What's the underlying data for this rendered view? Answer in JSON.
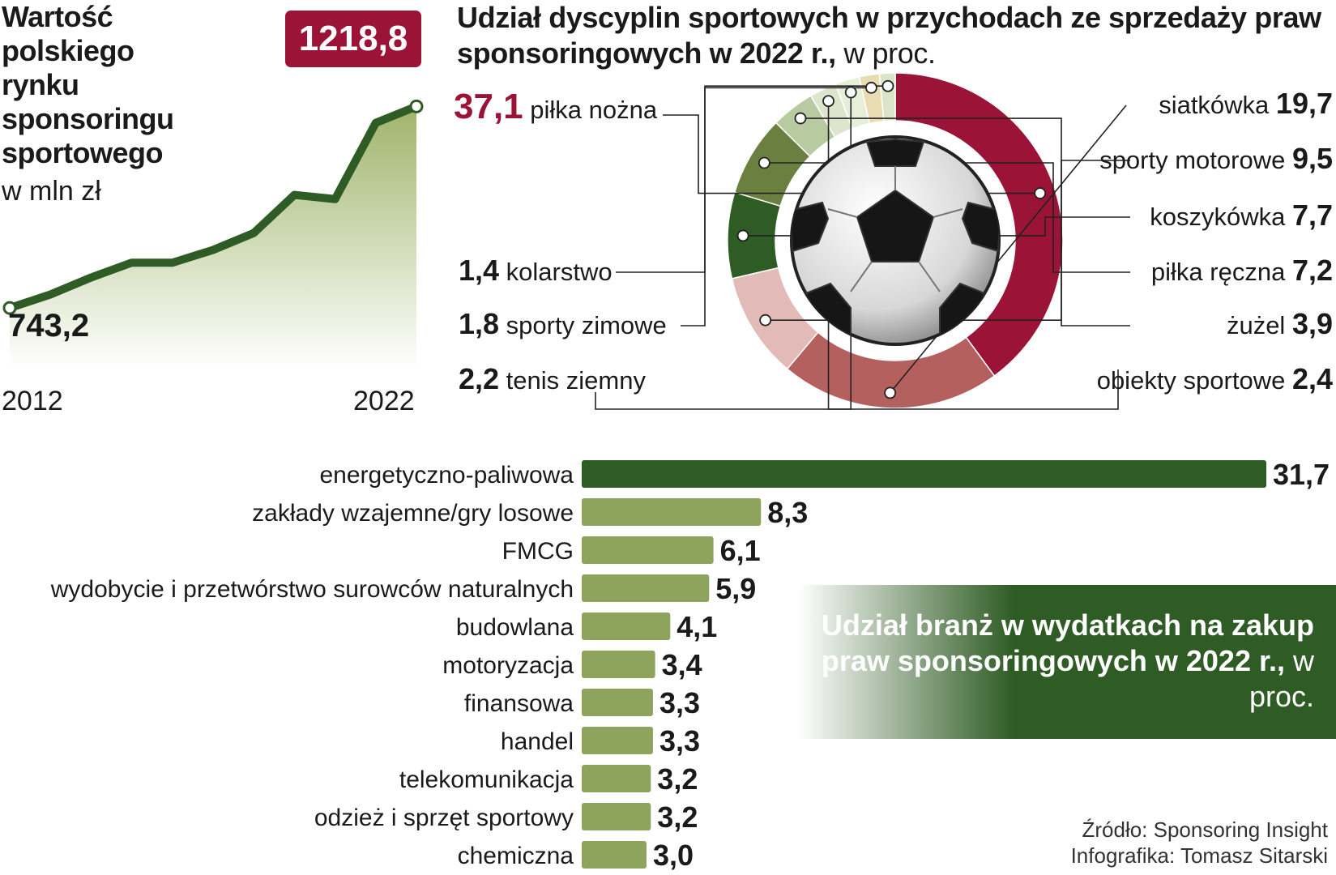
{
  "line_block": {
    "title": "Wartość polskiego rynku sponsoringu sportowego",
    "unit": "w mln zł",
    "start_value_label": "743,2",
    "end_value_label": "1218,8",
    "year_start": "2012",
    "year_end": "2022"
  },
  "donut_block": {
    "title_bold": "Udział dyscyplin sportowych w przychodach ze sprzedaży praw sponsoringowych w 2022 r.,",
    "title_unit": " w proc."
  },
  "bars_block": {
    "title_bold": "Udział branż w wydatkach na zakup praw sponsoringowych w 2022 r.,",
    "title_unit": " w proc."
  },
  "credits": {
    "source": "Źródło: Sponsoring Insight",
    "author": "Infografika: Tomasz Sitarski"
  },
  "colors": {
    "maroon": "#9b1336",
    "dark_green": "#2f5c24",
    "light_green": "#8ea45c",
    "area_green": "#a9bd79"
  },
  "chart_data": [
    {
      "type": "area",
      "x": [
        2012,
        2013,
        2014,
        2015,
        2016,
        2017,
        2018,
        2019,
        2020,
        2021,
        2022
      ],
      "values": [
        743.2,
        775,
        815,
        850,
        850,
        880,
        920,
        1010,
        1000,
        1180,
        1218.8
      ],
      "xlabel": "",
      "ylabel": "",
      "ylim": [
        600,
        1250
      ],
      "grid": false,
      "legend": "none",
      "labeled_points": {
        "first": "743,2",
        "last": "1218,8"
      }
    },
    {
      "type": "pie",
      "subtype": "donut",
      "center_image": "soccer-ball-icon",
      "slices": [
        {
          "label": "piłka nożna",
          "value": 37.1,
          "value_label": "37,1",
          "color": "#9b1336"
        },
        {
          "label": "siatkówka",
          "value": 19.7,
          "value_label": "19,7",
          "color": "#b4605f"
        },
        {
          "label": "sporty motorowe",
          "value": 9.5,
          "value_label": "9,5",
          "color": "#e2bab7"
        },
        {
          "label": "koszykówka",
          "value": 7.7,
          "value_label": "7,7",
          "color": "#2f5c24"
        },
        {
          "label": "piłka ręczna",
          "value": 7.2,
          "value_label": "7,2",
          "color": "#6b8040"
        },
        {
          "label": "żużel",
          "value": 3.9,
          "value_label": "3,9",
          "color": "#b8caa0"
        },
        {
          "label": "obiekty sportowe",
          "value": 2.4,
          "value_label": "2,4",
          "color": "#dde6cc"
        },
        {
          "label": "tenis ziemny",
          "value": 2.2,
          "value_label": "2,2",
          "color": "#e8efd9"
        },
        {
          "label": "sporty zimowe",
          "value": 1.8,
          "value_label": "1,8",
          "color": "#eadcb2"
        },
        {
          "label": "kolarstwo",
          "value": 1.4,
          "value_label": "1,4",
          "color": "#d9e4c8"
        }
      ]
    },
    {
      "type": "bar",
      "orientation": "horizontal",
      "categories": [
        "energetyczno-paliwowa",
        "zakłady wzajemne/gry losowe",
        "FMCG",
        "wydobycie i przetwórstwo surowców naturalnych",
        "budowlana",
        "motoryzacja",
        "finansowa",
        "handel",
        "telekomunikacja",
        "odzież i sprzęt sportowy",
        "chemiczna"
      ],
      "values": [
        31.7,
        8.3,
        6.1,
        5.9,
        4.1,
        3.4,
        3.3,
        3.3,
        3.2,
        3.2,
        3.0
      ],
      "value_labels": [
        "31,7",
        "8,3",
        "6,1",
        "5,9",
        "4,1",
        "3,4",
        "3,3",
        "3,3",
        "3,2",
        "3,2",
        "3,0"
      ],
      "colors": [
        "#2f5c24",
        "#8ea45c",
        "#8ea45c",
        "#8ea45c",
        "#8ea45c",
        "#8ea45c",
        "#8ea45c",
        "#8ea45c",
        "#8ea45c",
        "#8ea45c",
        "#8ea45c"
      ]
    }
  ]
}
